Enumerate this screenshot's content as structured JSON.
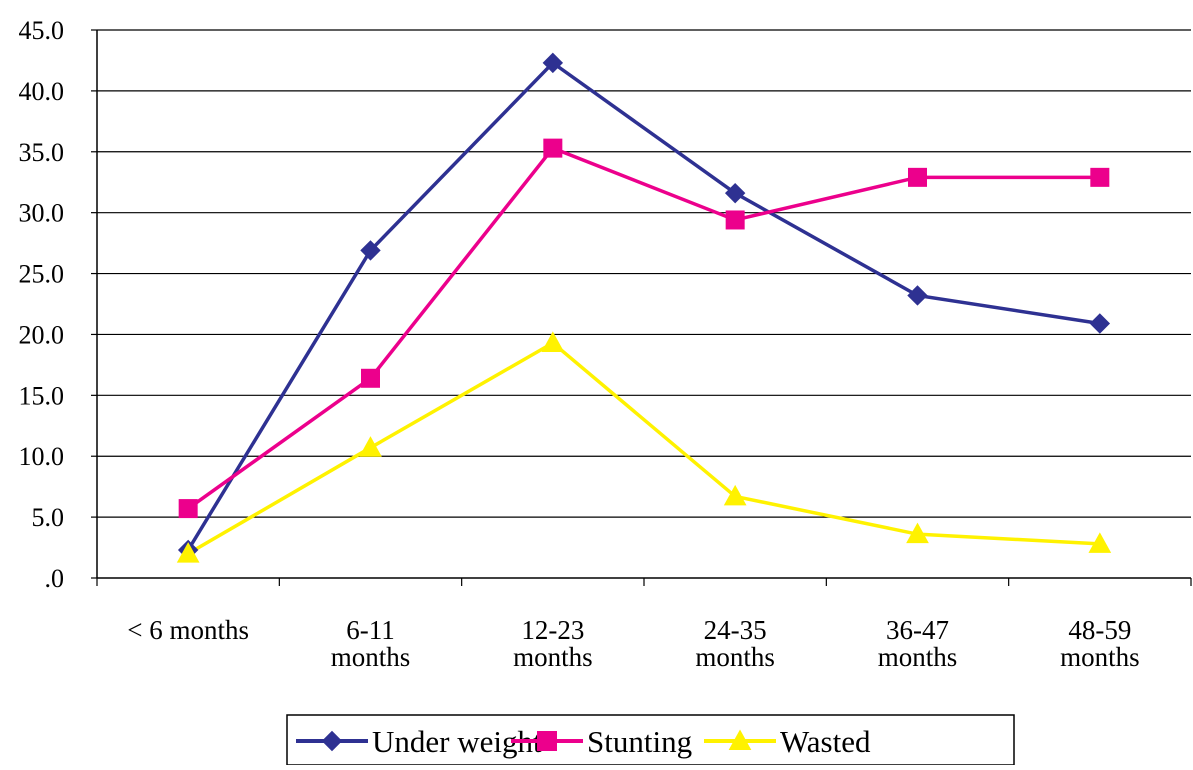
{
  "chart_data": {
    "type": "line",
    "title": "",
    "xlabel": "",
    "ylabel": "",
    "categories": [
      [
        "< 6 months"
      ],
      [
        "6-11",
        "months"
      ],
      [
        "12-23",
        "months"
      ],
      [
        "24-35",
        "months"
      ],
      [
        "36-47",
        "months"
      ],
      [
        "48-59",
        "months"
      ]
    ],
    "ylim": [
      0,
      45
    ],
    "yticks": [
      0,
      5,
      10,
      15,
      20,
      25,
      30,
      35,
      40,
      45
    ],
    "ytick_labels": [
      ".0",
      "5.0",
      "10.0",
      "15.0",
      "20.0",
      "25.0",
      "30.0",
      "35.0",
      "40.0",
      "45.0"
    ],
    "grid": "horizontal",
    "legend_position": "bottom",
    "series": [
      {
        "name": "Under weight",
        "color": "#2e3192",
        "marker": "diamond",
        "values": [
          2.3,
          26.9,
          42.3,
          31.6,
          23.2,
          20.9
        ]
      },
      {
        "name": "Stunting",
        "color": "#ec008c",
        "marker": "square",
        "values": [
          5.7,
          16.4,
          35.3,
          29.4,
          32.9,
          32.9
        ]
      },
      {
        "name": "Wasted",
        "color": "#fff200",
        "marker": "triangle",
        "values": [
          2.0,
          10.7,
          19.3,
          6.7,
          3.6,
          2.8
        ]
      }
    ]
  }
}
